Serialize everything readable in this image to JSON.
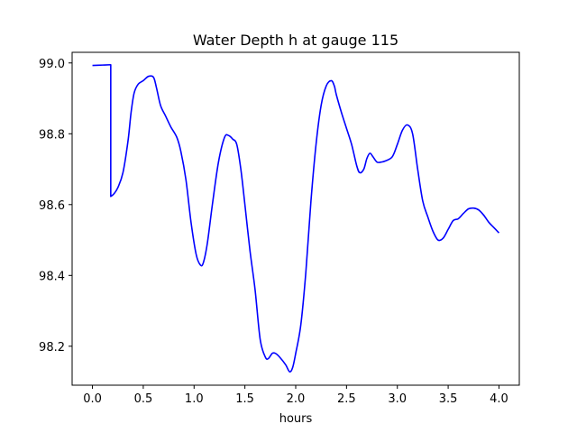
{
  "chart_data": {
    "type": "line",
    "title": "Water Depth h at gauge 115",
    "xlabel": "hours",
    "ylabel": "",
    "xlim": [
      -0.2,
      4.2
    ],
    "ylim": [
      98.09,
      99.03
    ],
    "grid": false,
    "x_ticks": [
      0.0,
      0.5,
      1.0,
      1.5,
      2.0,
      2.5,
      3.0,
      3.5,
      4.0
    ],
    "x_tick_labels": [
      "0.0",
      "0.5",
      "1.0",
      "1.5",
      "2.0",
      "2.5",
      "3.0",
      "3.5",
      "4.0"
    ],
    "y_ticks": [
      98.2,
      98.4,
      98.6,
      98.8,
      99.0
    ],
    "y_tick_labels": [
      "98.2",
      "98.4",
      "98.6",
      "98.8",
      "99.0"
    ],
    "series": [
      {
        "color": "#0000ff",
        "x": [
          0.0,
          0.1,
          0.18,
          0.18,
          0.21,
          0.25,
          0.3,
          0.35,
          0.38,
          0.41,
          0.45,
          0.5,
          0.55,
          0.6,
          0.63,
          0.67,
          0.72,
          0.77,
          0.83,
          0.87,
          0.92,
          0.97,
          1.02,
          1.06,
          1.09,
          1.13,
          1.18,
          1.24,
          1.3,
          1.34,
          1.38,
          1.42,
          1.46,
          1.5,
          1.55,
          1.6,
          1.65,
          1.7,
          1.73,
          1.77,
          1.8,
          1.84,
          1.9,
          1.94,
          1.97,
          2.0,
          2.05,
          2.1,
          2.15,
          2.2,
          2.25,
          2.3,
          2.35,
          2.38,
          2.4,
          2.45,
          2.5,
          2.55,
          2.6,
          2.63,
          2.67,
          2.7,
          2.73,
          2.76,
          2.8,
          2.84,
          2.88,
          2.95,
          3.0,
          3.05,
          3.1,
          3.15,
          3.2,
          3.25,
          3.3,
          3.35,
          3.4,
          3.45,
          3.5,
          3.55,
          3.6,
          3.65,
          3.7,
          3.75,
          3.8,
          3.85,
          3.9,
          3.95,
          4.0
        ],
        "y": [
          98.993,
          98.994,
          98.995,
          98.623,
          98.63,
          98.648,
          98.69,
          98.78,
          98.86,
          98.915,
          98.94,
          98.95,
          98.962,
          98.96,
          98.93,
          98.88,
          98.85,
          98.82,
          98.79,
          98.75,
          98.67,
          98.55,
          98.46,
          98.43,
          98.435,
          98.49,
          98.6,
          98.72,
          98.79,
          98.795,
          98.785,
          98.77,
          98.7,
          98.6,
          98.47,
          98.36,
          98.22,
          98.17,
          98.165,
          98.18,
          98.18,
          98.17,
          98.148,
          98.128,
          98.14,
          98.18,
          98.26,
          98.41,
          98.61,
          98.77,
          98.88,
          98.935,
          98.95,
          98.935,
          98.91,
          98.86,
          98.815,
          98.77,
          98.71,
          98.69,
          98.7,
          98.73,
          98.745,
          98.735,
          98.72,
          98.72,
          98.723,
          98.735,
          98.77,
          98.81,
          98.825,
          98.8,
          98.7,
          98.61,
          98.565,
          98.525,
          98.5,
          98.505,
          98.53,
          98.555,
          98.56,
          98.575,
          98.588,
          98.59,
          98.585,
          98.57,
          98.55,
          98.535,
          98.52
        ]
      }
    ]
  }
}
